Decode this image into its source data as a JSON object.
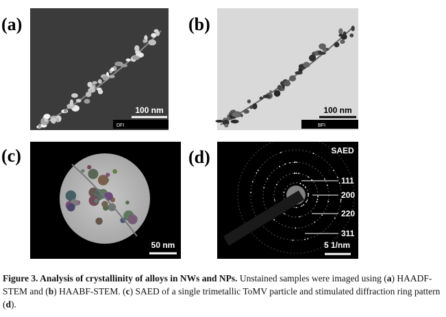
{
  "panels": [
    {
      "label": "(a)",
      "scale_bar": "100 nm",
      "mode": "DFI"
    },
    {
      "label": "(b)",
      "scale_bar": "100 nm",
      "mode": "BFI"
    },
    {
      "label": "(c)",
      "scale_bar": "50 nm"
    },
    {
      "label": "(d)",
      "title": "SAED",
      "rings": [
        "111",
        "200",
        "220",
        "311"
      ],
      "scale_bar": "5 1/nm"
    }
  ],
  "caption": [
    {
      "text": "Figure 3. Analysis of crystallinity of alloys in NWs and NPs.",
      "bold": true
    },
    {
      "text": " Unstained samples were imaged using (",
      "bold": false
    },
    {
      "text": "a",
      "bold": true
    },
    {
      "text": ") HAADF-STEM and (",
      "bold": false
    },
    {
      "text": "b",
      "bold": true
    },
    {
      "text": ") HAABF-STEM. (",
      "bold": false
    },
    {
      "text": "c",
      "bold": true
    },
    {
      "text": ") SAED of a single trimetallic ToMV particle and stimulated diffraction ring pattern (",
      "bold": false
    },
    {
      "text": "d",
      "bold": true
    },
    {
      "text": ").",
      "bold": false
    }
  ]
}
